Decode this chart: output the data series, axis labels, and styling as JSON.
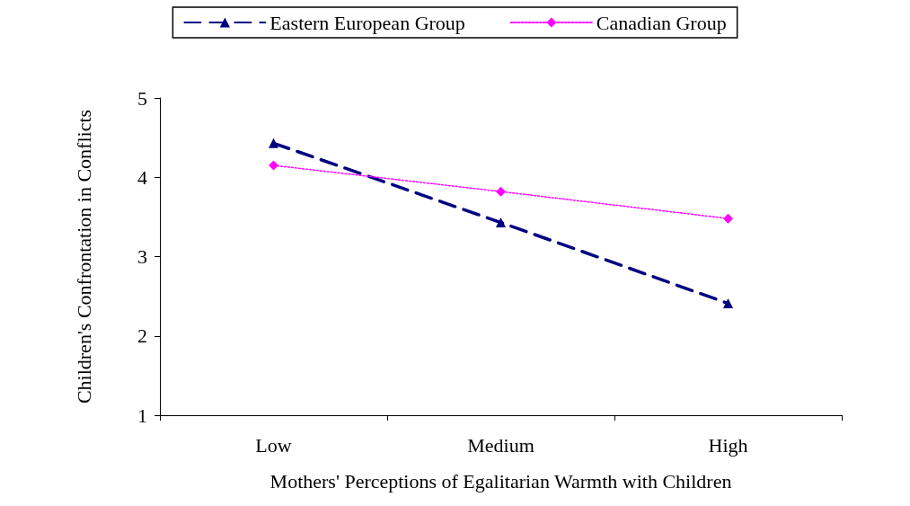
{
  "chart_data": {
    "type": "line",
    "xlabel": "Mothers' Perceptions of Egalitarian Warmth with Children",
    "ylabel": "Children's Confrontation in Conflicts",
    "categories": [
      "Low",
      "Medium",
      "High"
    ],
    "series": [
      {
        "name": "Eastern European Group",
        "color": "#000080",
        "values": [
          4.43,
          3.43,
          2.41
        ],
        "marker": "triangle",
        "line_style": "dashed"
      },
      {
        "name": "Canadian Group",
        "color": "#ff00ff",
        "values": [
          4.15,
          3.82,
          3.48
        ],
        "marker": "diamond",
        "line_style": "dotted"
      }
    ],
    "ylim": [
      1,
      5
    ],
    "yticks": [
      1,
      2,
      3,
      4,
      5
    ],
    "grid": false,
    "legend": "top"
  }
}
